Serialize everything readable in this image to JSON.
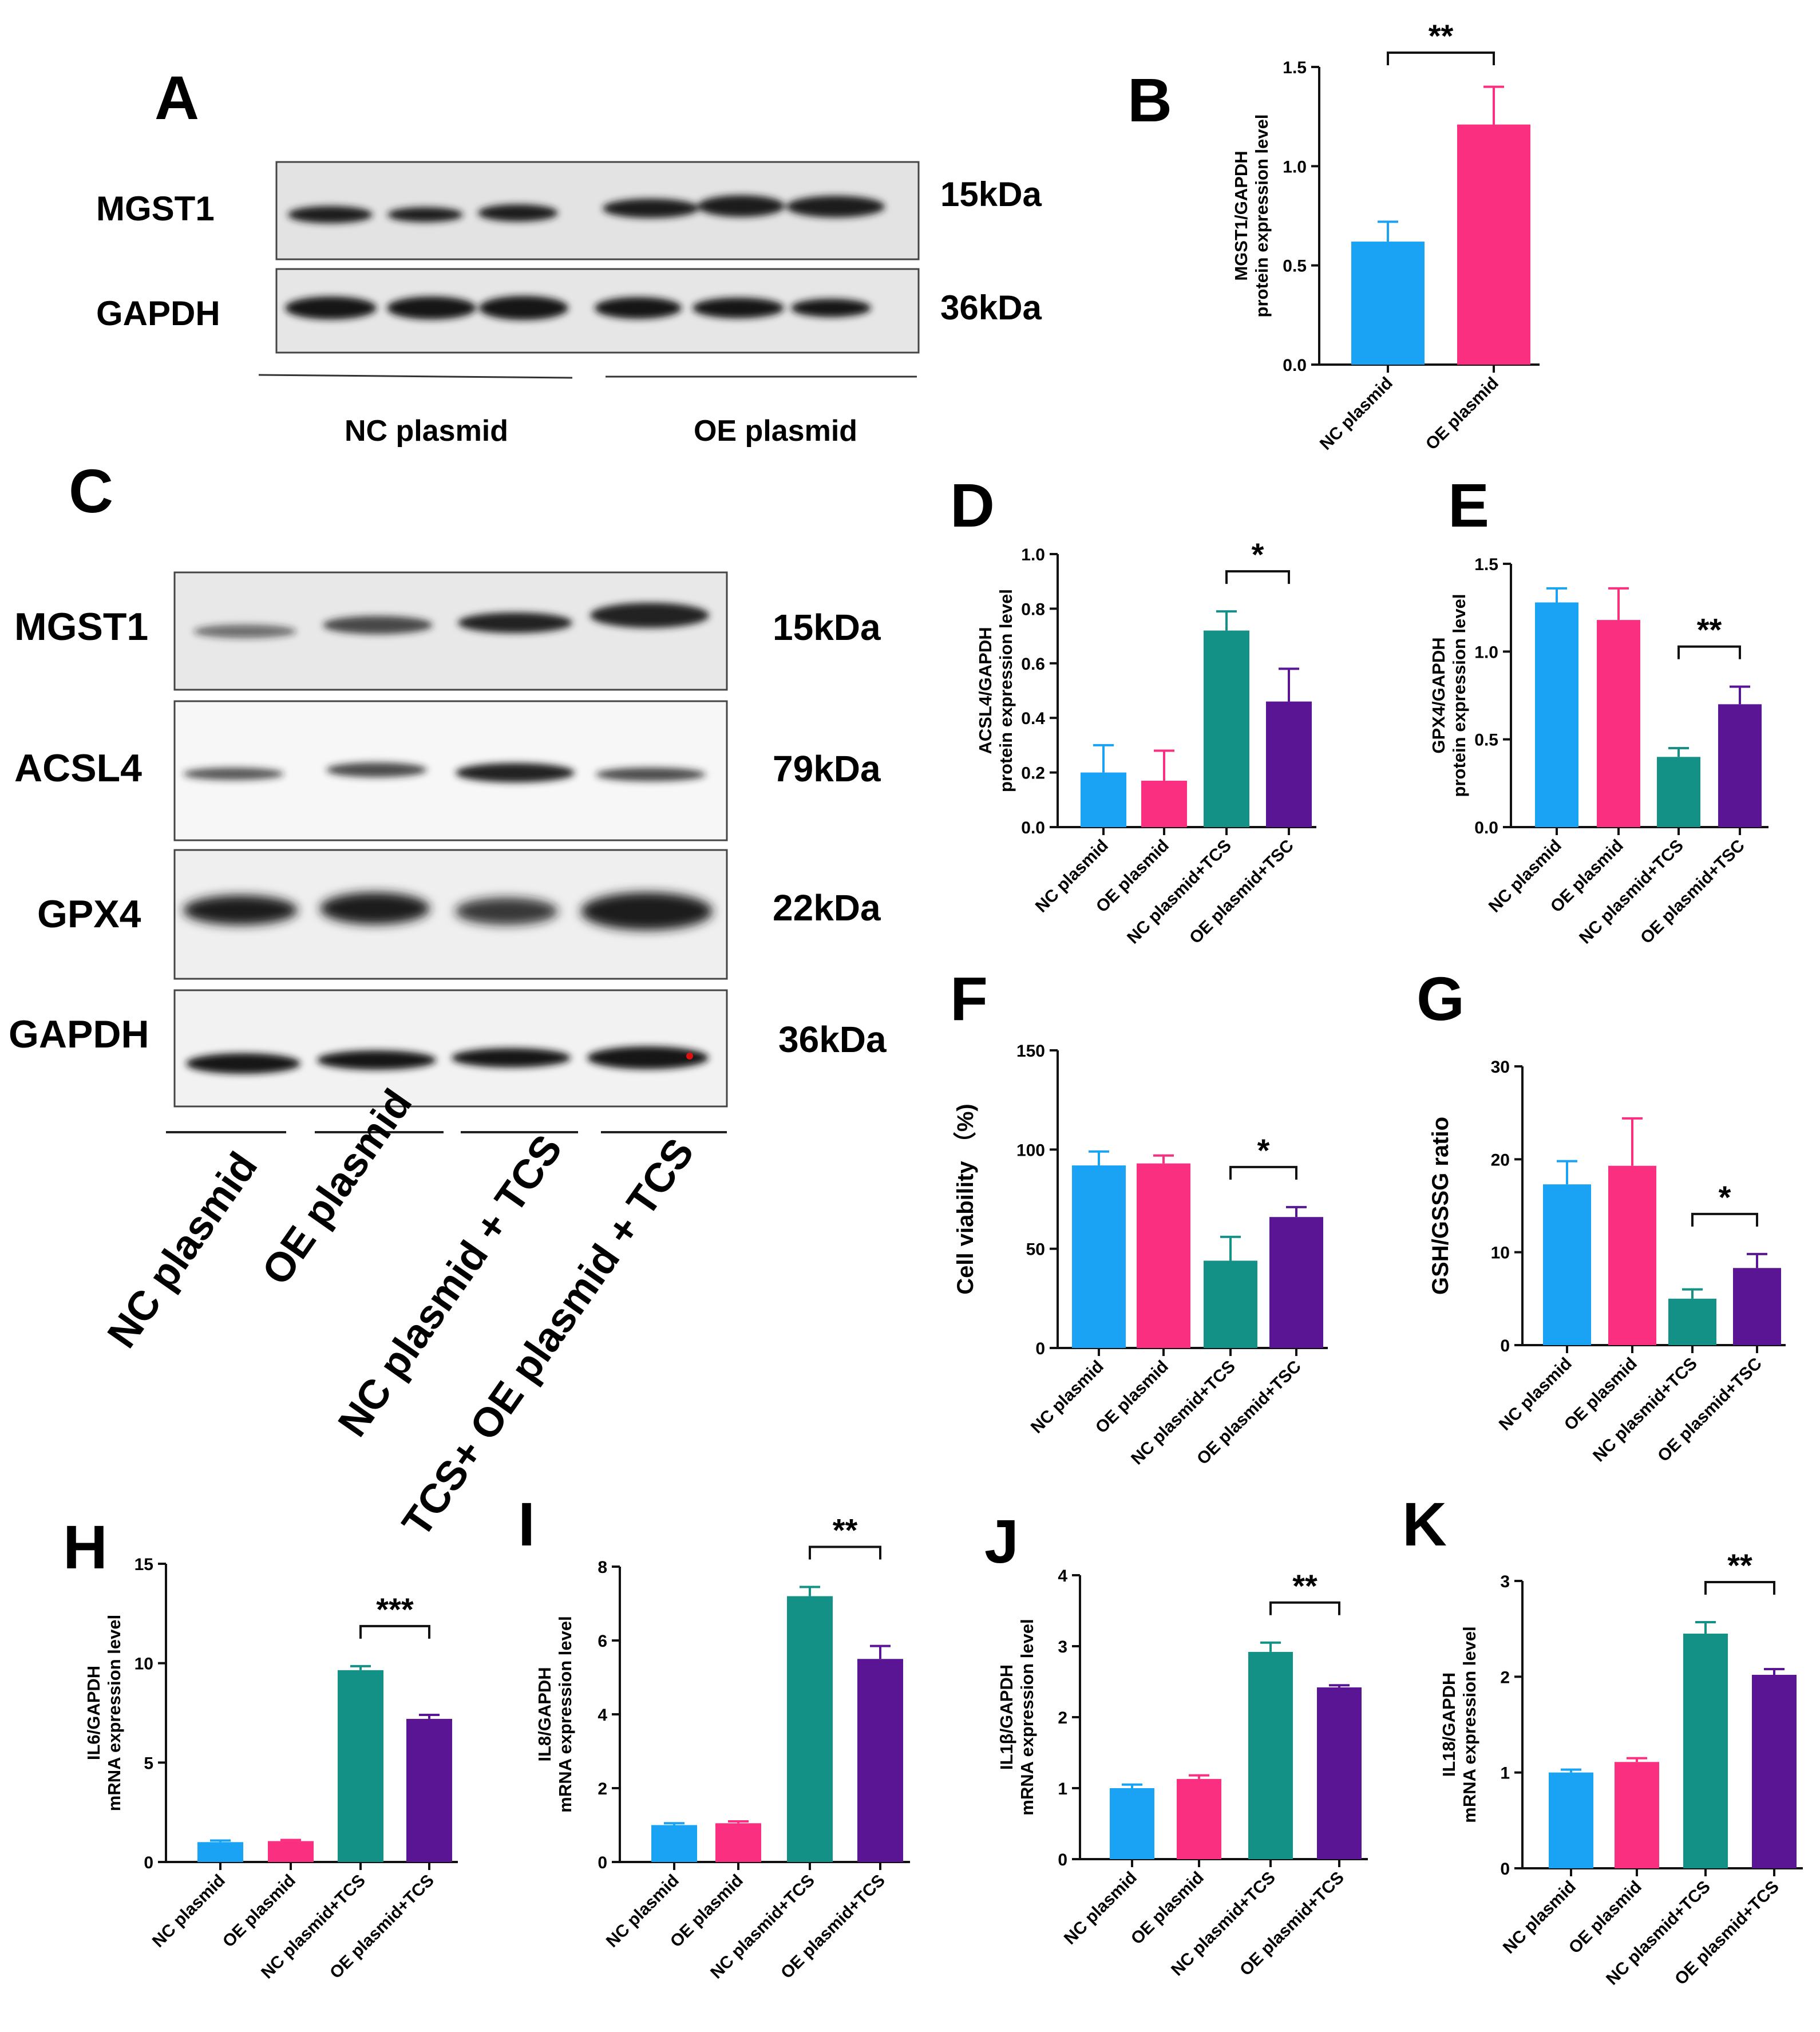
{
  "panel_letters": [
    "A",
    "B",
    "C",
    "D",
    "E",
    "F",
    "G",
    "H",
    "I",
    "J",
    "K"
  ],
  "blot_a": {
    "proteins": [
      "MGST1",
      "GAPDH"
    ],
    "kda": [
      "15kDa",
      "36kDa"
    ],
    "groups": [
      "NC plasmid",
      "OE plasmid"
    ]
  },
  "blot_c": {
    "proteins": [
      "MGST1",
      "ACSL4",
      "GPX4",
      "GAPDH"
    ],
    "kda": [
      "15kDa",
      "79kDa",
      "22kDa",
      "36kDa"
    ],
    "groups": [
      "NC plasmid",
      "OE plasmid",
      "NC plasmid + TCS",
      "TCS+ OE plasmid + TCS"
    ]
  },
  "colors": {
    "blue": "#1aa3f5",
    "pink": "#fb2f7f",
    "teal": "#149186",
    "purple": "#5a1595"
  },
  "chart_data": [
    {
      "id": "B",
      "type": "bar",
      "categories": [
        "NC plasmid",
        "OE plasmid"
      ],
      "values": [
        0.62,
        1.21
      ],
      "errors": [
        0.1,
        0.19
      ],
      "ylabel": [
        "MGST1/GAPDH",
        "protein expression level"
      ],
      "ylim": [
        0,
        1.5
      ],
      "ticks": [
        "0.0",
        "0.5",
        "1.0",
        "1.5"
      ],
      "significance": [
        {
          "between": [
            0,
            1
          ],
          "label": "**"
        }
      ]
    },
    {
      "id": "D",
      "type": "bar",
      "categories": [
        "NC plasmid",
        "OE plasmid",
        "NC plasmid+TCS",
        "OE plasmid+TSC"
      ],
      "values": [
        0.2,
        0.17,
        0.72,
        0.46
      ],
      "errors": [
        0.1,
        0.11,
        0.07,
        0.12
      ],
      "ylabel": [
        "ACSL4/GAPDH",
        "protein expression level"
      ],
      "ylim": [
        0,
        1.0
      ],
      "ticks": [
        "0.0",
        "0.2",
        "0.4",
        "0.6",
        "0.8",
        "1.0"
      ],
      "significance": [
        {
          "between": [
            2,
            3
          ],
          "label": "*"
        }
      ]
    },
    {
      "id": "E",
      "type": "bar",
      "categories": [
        "NC plasmid",
        "OE plasmid",
        "NC plasmid+TCS",
        "OE plasmid+TSC"
      ],
      "values": [
        1.28,
        1.18,
        0.4,
        0.7
      ],
      "errors": [
        0.08,
        0.18,
        0.05,
        0.1
      ],
      "ylabel": [
        "GPX4/GAPDH",
        "protein expression level"
      ],
      "ylim": [
        0,
        1.5
      ],
      "ticks": [
        "0.0",
        "0.5",
        "1.0",
        "1.5"
      ],
      "significance": [
        {
          "between": [
            2,
            3
          ],
          "label": "**"
        }
      ]
    },
    {
      "id": "F",
      "type": "bar",
      "categories": [
        "NC plasmid",
        "OE plasmid",
        "NC plasmid+TCS",
        "OE plasmid+TSC"
      ],
      "values": [
        92,
        93,
        44,
        66
      ],
      "errors": [
        7,
        4,
        12,
        5
      ],
      "ylabel": [
        "Cell viability （%)"
      ],
      "ylim": [
        0,
        150
      ],
      "ticks": [
        "0",
        "50",
        "100",
        "150"
      ],
      "significance": [
        {
          "between": [
            2,
            3
          ],
          "label": "*"
        }
      ]
    },
    {
      "id": "G",
      "type": "bar",
      "categories": [
        "NC plasmid",
        "OE plasmid",
        "NC plasmid+TCS",
        "OE plasmid+TSC"
      ],
      "values": [
        17.3,
        19.3,
        5.0,
        8.3
      ],
      "errors": [
        2.5,
        5.1,
        1.0,
        1.5
      ],
      "ylabel": [
        "GSH/GSSG ratio"
      ],
      "ylim": [
        0,
        30
      ],
      "ticks": [
        "0",
        "10",
        "20",
        "30"
      ],
      "significance": [
        {
          "between": [
            2,
            3
          ],
          "label": "*"
        }
      ]
    },
    {
      "id": "H",
      "type": "bar",
      "categories": [
        "NC plasmid",
        "OE plasmid",
        "NC plasmid+TCS",
        "OE plasmid+TCS"
      ],
      "values": [
        1.0,
        1.05,
        9.65,
        7.2
      ],
      "errors": [
        0.08,
        0.06,
        0.2,
        0.2
      ],
      "ylabel": [
        "IL6/GAPDH",
        "mRNA expression level"
      ],
      "ylim": [
        0,
        15
      ],
      "ticks": [
        "0",
        "5",
        "10",
        "15"
      ],
      "significance": [
        {
          "between": [
            2,
            3
          ],
          "label": "***"
        }
      ]
    },
    {
      "id": "I",
      "type": "bar",
      "categories": [
        "NC plasmid",
        "OE plasmid",
        "NC plasmid+TCS",
        "OE plasmid+TCS"
      ],
      "values": [
        1.0,
        1.05,
        7.2,
        5.5
      ],
      "errors": [
        0.05,
        0.05,
        0.25,
        0.35
      ],
      "ylabel": [
        "IL8/GAPDH",
        "mRNA expression level"
      ],
      "ylim": [
        0,
        8
      ],
      "ticks": [
        "0",
        "2",
        "4",
        "6",
        "8"
      ],
      "significance": [
        {
          "between": [
            2,
            3
          ],
          "label": "**"
        }
      ]
    },
    {
      "id": "J",
      "type": "bar",
      "categories": [
        "NC plasmid",
        "OE plasmid",
        "NC plasmid+TCS",
        "OE plasmid+TCS"
      ],
      "values": [
        1.0,
        1.13,
        2.92,
        2.42
      ],
      "errors": [
        0.05,
        0.05,
        0.13,
        0.03
      ],
      "ylabel": [
        "IL1β/GAPDH",
        "mRNA expression level"
      ],
      "ylim": [
        0,
        4
      ],
      "ticks": [
        "0",
        "1",
        "2",
        "3",
        "4"
      ],
      "significance": [
        {
          "between": [
            2,
            3
          ],
          "label": "**"
        }
      ]
    },
    {
      "id": "K",
      "type": "bar",
      "categories": [
        "NC plasmid",
        "OE plasmid",
        "NC plasmid+TCS",
        "OE plasmid+TCS"
      ],
      "values": [
        1.0,
        1.11,
        2.45,
        2.02
      ],
      "errors": [
        0.03,
        0.04,
        0.12,
        0.06
      ],
      "ylabel": [
        "IL18/GAPDH",
        "mRNA expression level"
      ],
      "ylim": [
        0,
        3
      ],
      "ticks": [
        "0",
        "1",
        "2",
        "3"
      ],
      "significance": [
        {
          "between": [
            2,
            3
          ],
          "label": "**"
        }
      ]
    }
  ]
}
